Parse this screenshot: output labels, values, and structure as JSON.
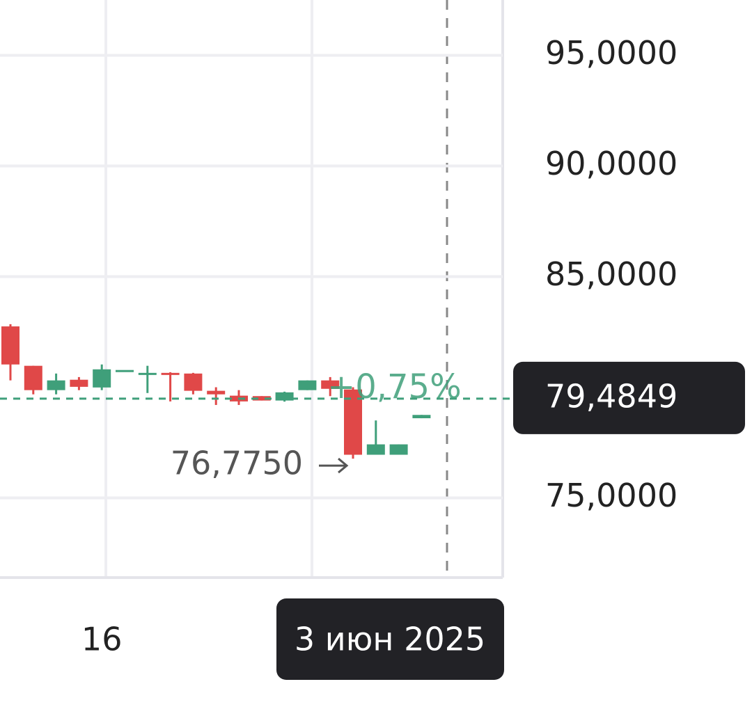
{
  "chart_data": {
    "type": "candlestick",
    "categories": [
      null,
      null,
      null,
      null,
      "16",
      null,
      null,
      null,
      null,
      null,
      null,
      null,
      null,
      null,
      null,
      null,
      "3 июн 2025",
      null,
      null
    ],
    "open": [
      82.75,
      80.97,
      79.87,
      80.34,
      79.99,
      80.78,
      80.59,
      80.65,
      80.62,
      79.84,
      79.62,
      79.6,
      79.4,
      79.87,
      80.31,
      79.9,
      76.95,
      76.95,
      78.6
    ],
    "high": [
      82.85,
      80.97,
      80.62,
      80.46,
      81.03,
      80.78,
      80.97,
      80.68,
      80.65,
      80.0,
      79.87,
      79.6,
      79.8,
      80.31,
      80.46,
      80.0,
      78.5,
      77.42,
      78.75
    ],
    "low": [
      80.31,
      79.68,
      79.68,
      79.87,
      79.87,
      80.78,
      79.74,
      79.36,
      79.68,
      79.2,
      79.2,
      79.4,
      79.35,
      79.87,
      79.6,
      76.775,
      76.95,
      76.95,
      78.6
    ],
    "close": [
      81.03,
      79.87,
      80.31,
      80.02,
      80.81,
      80.78,
      80.65,
      80.59,
      79.84,
      79.68,
      79.36,
      79.4,
      79.77,
      80.31,
      79.93,
      76.95,
      77.42,
      77.42,
      78.75
    ],
    "up_color": "#3f9f7a",
    "down_color": "#e04848",
    "ylim": [
      71.4,
      97.5
    ],
    "yticks": [
      {
        "value": 95,
        "label": "95,0000"
      },
      {
        "value": 90,
        "label": "90,0000"
      },
      {
        "value": 85,
        "label": "85,0000"
      },
      {
        "value": 75,
        "label": "75,0000"
      }
    ],
    "grid": true,
    "price": {
      "value": 79.4849,
      "label": "79,4849"
    },
    "change_label": "+0,75%",
    "low_marker": {
      "value": 76.775,
      "label": "76,7750"
    }
  }
}
